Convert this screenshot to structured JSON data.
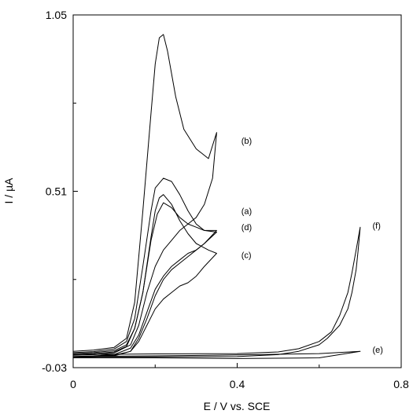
{
  "chart_data": {
    "type": "line",
    "xlabel": "E / V vs. SCE",
    "ylabel": "I / µA",
    "xlim": [
      0,
      0.8
    ],
    "ylim": [
      -0.03,
      1.05
    ],
    "xticks": [
      "0",
      "0.4",
      "0.8"
    ],
    "xtick_values": [
      0,
      0.4,
      0.8
    ],
    "yticks": [
      "1.05",
      "0.51",
      "-0.03"
    ],
    "ytick_values": [
      1.05,
      0.51,
      -0.03
    ],
    "grid": false,
    "legend": "none",
    "line_color": "#000000",
    "series": [
      {
        "label": "(a)",
        "forward": [
          [
            0,
            0.013
          ],
          [
            0.05,
            0.016
          ],
          [
            0.1,
            0.022
          ],
          [
            0.13,
            0.04
          ],
          [
            0.15,
            0.09
          ],
          [
            0.17,
            0.2
          ],
          [
            0.19,
            0.36
          ],
          [
            0.205,
            0.44
          ],
          [
            0.22,
            0.475
          ],
          [
            0.24,
            0.46
          ],
          [
            0.26,
            0.43
          ],
          [
            0.28,
            0.41
          ],
          [
            0.3,
            0.4
          ],
          [
            0.32,
            0.39
          ],
          [
            0.35,
            0.385
          ]
        ],
        "reverse": [
          [
            0.35,
            0.385
          ],
          [
            0.32,
            0.35
          ],
          [
            0.3,
            0.33
          ],
          [
            0.28,
            0.32
          ],
          [
            0.26,
            0.3
          ],
          [
            0.24,
            0.28
          ],
          [
            0.22,
            0.25
          ],
          [
            0.2,
            0.21
          ],
          [
            0.18,
            0.14
          ],
          [
            0.16,
            0.07
          ],
          [
            0.14,
            0.03
          ],
          [
            0.1,
            0.01
          ],
          [
            0.05,
            0.006
          ],
          [
            0,
            0.004
          ]
        ]
      },
      {
        "label": "(b)",
        "forward": [
          [
            0,
            0.02
          ],
          [
            0.05,
            0.024
          ],
          [
            0.1,
            0.032
          ],
          [
            0.13,
            0.06
          ],
          [
            0.15,
            0.17
          ],
          [
            0.17,
            0.45
          ],
          [
            0.19,
            0.75
          ],
          [
            0.2,
            0.9
          ],
          [
            0.21,
            0.98
          ],
          [
            0.22,
            0.99
          ],
          [
            0.23,
            0.94
          ],
          [
            0.25,
            0.8
          ],
          [
            0.27,
            0.7
          ],
          [
            0.3,
            0.64
          ],
          [
            0.33,
            0.61
          ],
          [
            0.35,
            0.69
          ]
        ],
        "reverse": [
          [
            0.35,
            0.69
          ],
          [
            0.34,
            0.55
          ],
          [
            0.32,
            0.47
          ],
          [
            0.3,
            0.43
          ],
          [
            0.28,
            0.41
          ],
          [
            0.26,
            0.39
          ],
          [
            0.24,
            0.36
          ],
          [
            0.22,
            0.33
          ],
          [
            0.2,
            0.28
          ],
          [
            0.18,
            0.2
          ],
          [
            0.16,
            0.1
          ],
          [
            0.14,
            0.04
          ],
          [
            0.1,
            0.015
          ],
          [
            0.05,
            0.01
          ],
          [
            0,
            0.008
          ]
        ]
      },
      {
        "label": "(c)",
        "forward": [
          [
            0,
            0.01
          ],
          [
            0.05,
            0.013
          ],
          [
            0.1,
            0.018
          ],
          [
            0.13,
            0.035
          ],
          [
            0.15,
            0.09
          ],
          [
            0.17,
            0.2
          ],
          [
            0.19,
            0.37
          ],
          [
            0.2,
            0.45
          ],
          [
            0.21,
            0.49
          ],
          [
            0.22,
            0.5
          ],
          [
            0.24,
            0.47
          ],
          [
            0.26,
            0.42
          ],
          [
            0.28,
            0.38
          ],
          [
            0.3,
            0.35
          ],
          [
            0.33,
            0.33
          ],
          [
            0.35,
            0.32
          ]
        ],
        "reverse": [
          [
            0.35,
            0.32
          ],
          [
            0.32,
            0.28
          ],
          [
            0.3,
            0.25
          ],
          [
            0.28,
            0.23
          ],
          [
            0.26,
            0.22
          ],
          [
            0.24,
            0.2
          ],
          [
            0.22,
            0.18
          ],
          [
            0.2,
            0.15
          ],
          [
            0.18,
            0.1
          ],
          [
            0.16,
            0.05
          ],
          [
            0.14,
            0.02
          ],
          [
            0.1,
            0.006
          ],
          [
            0.05,
            0.003
          ],
          [
            0,
            0.002
          ]
        ]
      },
      {
        "label": "(d)",
        "forward": [
          [
            0,
            0.016
          ],
          [
            0.05,
            0.019
          ],
          [
            0.1,
            0.027
          ],
          [
            0.13,
            0.05
          ],
          [
            0.15,
            0.12
          ],
          [
            0.17,
            0.28
          ],
          [
            0.19,
            0.45
          ],
          [
            0.2,
            0.52
          ],
          [
            0.22,
            0.55
          ],
          [
            0.24,
            0.54
          ],
          [
            0.26,
            0.5
          ],
          [
            0.28,
            0.45
          ],
          [
            0.3,
            0.41
          ],
          [
            0.32,
            0.39
          ],
          [
            0.35,
            0.39
          ]
        ],
        "reverse": [
          [
            0.35,
            0.39
          ],
          [
            0.32,
            0.35
          ],
          [
            0.3,
            0.33
          ],
          [
            0.28,
            0.31
          ],
          [
            0.26,
            0.29
          ],
          [
            0.24,
            0.27
          ],
          [
            0.22,
            0.24
          ],
          [
            0.2,
            0.19
          ],
          [
            0.18,
            0.12
          ],
          [
            0.16,
            0.06
          ],
          [
            0.14,
            0.02
          ],
          [
            0.1,
            0.008
          ],
          [
            0.05,
            0.005
          ],
          [
            0,
            0.003
          ]
        ]
      },
      {
        "label": "(e)",
        "forward": [
          [
            0,
            0.004
          ],
          [
            0.2,
            0.006
          ],
          [
            0.4,
            0.009
          ],
          [
            0.6,
            0.013
          ],
          [
            0.7,
            0.02
          ]
        ],
        "reverse": [
          [
            0.7,
            0.02
          ],
          [
            0.6,
            0.0
          ],
          [
            0.4,
            -0.002
          ],
          [
            0.2,
            0.0
          ],
          [
            0,
            0.0
          ]
        ]
      },
      {
        "label": "(f)",
        "forward": [
          [
            0,
            0.01
          ],
          [
            0.2,
            0.012
          ],
          [
            0.4,
            0.013
          ],
          [
            0.5,
            0.018
          ],
          [
            0.55,
            0.028
          ],
          [
            0.6,
            0.05
          ],
          [
            0.63,
            0.08
          ],
          [
            0.65,
            0.13
          ],
          [
            0.67,
            0.2
          ],
          [
            0.68,
            0.26
          ],
          [
            0.69,
            0.33
          ],
          [
            0.7,
            0.4
          ]
        ],
        "reverse": [
          [
            0.7,
            0.4
          ],
          [
            0.695,
            0.33
          ],
          [
            0.69,
            0.27
          ],
          [
            0.68,
            0.2
          ],
          [
            0.67,
            0.15
          ],
          [
            0.65,
            0.1
          ],
          [
            0.62,
            0.06
          ],
          [
            0.6,
            0.04
          ],
          [
            0.55,
            0.02
          ],
          [
            0.5,
            0.01
          ],
          [
            0.4,
            0.004
          ],
          [
            0.2,
            0.003
          ],
          [
            0,
            0.003
          ]
        ]
      }
    ],
    "annotations": [
      {
        "text": "(b)",
        "x": 0.41,
        "y": 0.665
      },
      {
        "text": "(a)",
        "x": 0.41,
        "y": 0.45
      },
      {
        "text": "(d)",
        "x": 0.41,
        "y": 0.4
      },
      {
        "text": "(c)",
        "x": 0.41,
        "y": 0.315
      },
      {
        "text": "(f)",
        "x": 0.73,
        "y": 0.405
      },
      {
        "text": "(e)",
        "x": 0.73,
        "y": 0.025
      }
    ]
  }
}
